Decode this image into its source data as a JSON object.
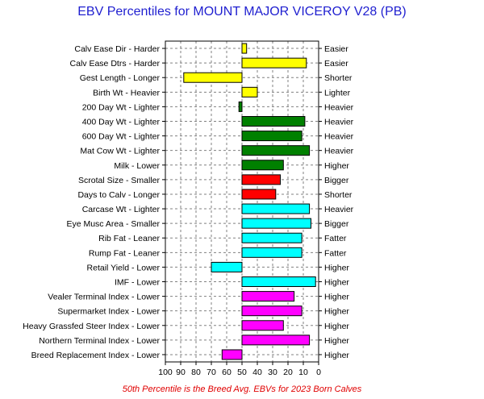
{
  "chart_data": {
    "type": "bar",
    "title": "EBV Percentiles for MOUNT MAJOR VICEROY V28 (PB)",
    "footnote": "50th Percentile is the Breed Avg. EBVs for 2023 Born Calves",
    "xlim": [
      100,
      0
    ],
    "x_ticks": [
      "100",
      "90",
      "80",
      "70",
      "60",
      "50",
      "40",
      "30",
      "20",
      "10",
      "0"
    ],
    "grid": true,
    "baseline": 50,
    "colors": {
      "yellow": "#ffff00",
      "green": "#008000",
      "red": "#ff0000",
      "cyan": "#00ffff",
      "magenta": "#ff00ff"
    },
    "traits": [
      {
        "left": "Calv Ease Dir - Harder",
        "right": "Easier",
        "value": 47,
        "color": "#ffff00"
      },
      {
        "left": "Calv Ease Dtrs - Harder",
        "right": "Easier",
        "value": 8,
        "color": "#ffff00"
      },
      {
        "left": "Gest Length - Longer",
        "right": "Shorter",
        "value": 88,
        "color": "#ffff00"
      },
      {
        "left": "Birth Wt - Heavier",
        "right": "Lighter",
        "value": 40,
        "color": "#ffff00"
      },
      {
        "left": "200 Day Wt - Lighter",
        "right": "Heavier",
        "value": 52,
        "color": "#008000"
      },
      {
        "left": "400 Day Wt - Lighter",
        "right": "Heavier",
        "value": 9,
        "color": "#008000"
      },
      {
        "left": "600 Day Wt - Lighter",
        "right": "Heavier",
        "value": 11,
        "color": "#008000"
      },
      {
        "left": "Mat Cow Wt - Lighter",
        "right": "Heavier",
        "value": 6,
        "color": "#008000"
      },
      {
        "left": "Milk - Lower",
        "right": "Higher",
        "value": 23,
        "color": "#008000"
      },
      {
        "left": "Scrotal Size - Smaller",
        "right": "Bigger",
        "value": 25,
        "color": "#ff0000"
      },
      {
        "left": "Days to Calv - Longer",
        "right": "Shorter",
        "value": 28,
        "color": "#ff0000"
      },
      {
        "left": "Carcase Wt - Lighter",
        "right": "Heavier",
        "value": 6,
        "color": "#00ffff"
      },
      {
        "left": "Eye Musc Area - Smaller",
        "right": "Bigger",
        "value": 5,
        "color": "#00ffff"
      },
      {
        "left": "Rib Fat - Leaner",
        "right": "Fatter",
        "value": 11,
        "color": "#00ffff"
      },
      {
        "left": "Rump Fat - Leaner",
        "right": "Fatter",
        "value": 11,
        "color": "#00ffff"
      },
      {
        "left": "Retail Yield - Lower",
        "right": "Higher",
        "value": 70,
        "color": "#00ffff"
      },
      {
        "left": "IMF - Lower",
        "right": "Higher",
        "value": 2,
        "color": "#00ffff"
      },
      {
        "left": "Vealer Terminal Index - Lower",
        "right": "Higher",
        "value": 16,
        "color": "#ff00ff"
      },
      {
        "left": "Supermarket Index - Lower",
        "right": "Higher",
        "value": 11,
        "color": "#ff00ff"
      },
      {
        "left": "Heavy Grassfed Steer Index - Lower",
        "right": "Higher",
        "value": 23,
        "color": "#ff00ff"
      },
      {
        "left": "Northern Terminal Index - Lower",
        "right": "Higher",
        "value": 6,
        "color": "#ff00ff"
      },
      {
        "left": "Breed Replacement Index - Lower",
        "right": "Higher",
        "value": 63,
        "color": "#ff00ff"
      }
    ]
  }
}
